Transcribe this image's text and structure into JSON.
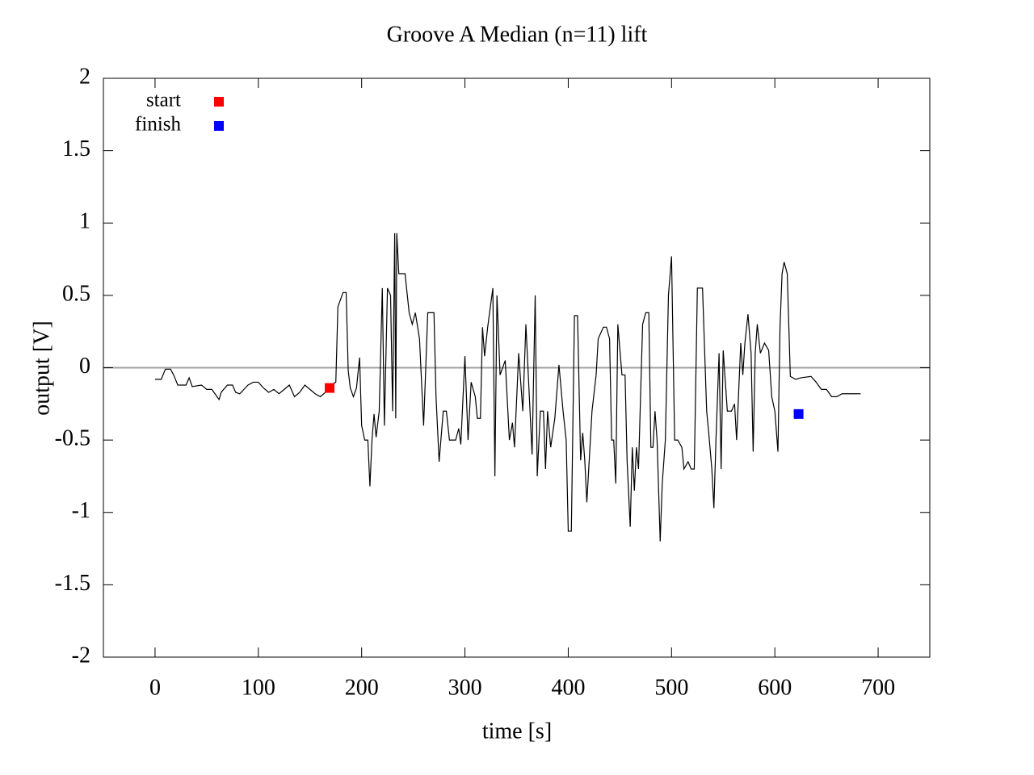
{
  "chart_data": {
    "type": "line",
    "title": "Groove A  Median (n=11) lift",
    "xlabel": "time [s]",
    "ylabel": "output [V]",
    "xlim": [
      -50,
      750
    ],
    "ylim": [
      -2,
      2
    ],
    "xticks": [
      0,
      100,
      200,
      300,
      400,
      500,
      600,
      700
    ],
    "yticks": [
      -2,
      -1.5,
      -1,
      -0.5,
      0,
      0.5,
      1,
      1.5,
      2
    ],
    "zero_line": true,
    "series": [
      {
        "color": "#000000",
        "x": [
          0,
          6,
          10,
          15,
          18,
          22,
          30,
          33,
          36,
          45,
          50,
          55,
          58,
          60,
          62,
          64,
          70,
          75,
          78,
          82,
          86,
          90,
          95,
          100,
          105,
          110,
          115,
          120,
          125,
          130,
          135,
          140,
          145,
          150,
          155,
          160,
          165,
          170,
          175,
          177,
          182,
          185,
          187,
          189,
          192,
          195,
          198,
          200,
          203,
          206,
          208,
          210,
          212,
          214,
          217,
          220,
          222,
          225,
          228,
          230,
          232,
          233,
          234,
          236,
          242,
          246,
          249,
          252,
          256,
          260,
          264,
          270,
          272,
          275,
          279,
          282,
          285,
          291,
          294,
          296,
          300,
          303,
          306,
          310,
          312,
          315,
          317,
          319,
          322,
          327,
          329,
          331,
          334,
          339,
          343,
          346,
          348,
          352,
          356,
          359,
          365,
          368,
          370,
          373,
          376,
          378,
          380,
          383,
          387,
          391,
          395,
          398,
          400,
          403,
          406,
          409,
          412,
          414,
          416,
          418,
          423,
          427,
          429,
          434,
          437,
          440,
          442,
          444,
          446,
          448,
          452,
          455,
          457,
          460,
          462,
          464,
          466,
          468,
          472,
          475,
          478,
          480,
          482,
          484,
          486,
          489,
          491,
          494,
          497,
          500,
          503,
          506,
          510,
          512,
          516,
          519,
          522,
          525,
          530,
          534,
          536,
          539,
          541,
          543,
          546,
          548,
          550,
          554,
          558,
          561,
          563,
          567,
          569,
          571,
          574,
          577,
          579,
          581,
          583,
          586,
          590,
          594,
          597,
          600,
          603,
          605,
          607,
          609,
          612,
          615,
          620,
          625,
          635,
          640,
          645,
          650,
          655,
          660,
          665,
          675,
          683
        ],
        "values": [
          -0.08,
          -0.08,
          -0.01,
          -0.01,
          -0.05,
          -0.12,
          -0.12,
          -0.07,
          -0.13,
          -0.12,
          -0.15,
          -0.15,
          -0.18,
          -0.2,
          -0.22,
          -0.17,
          -0.12,
          -0.12,
          -0.17,
          -0.18,
          -0.15,
          -0.12,
          -0.1,
          -0.1,
          -0.14,
          -0.17,
          -0.15,
          -0.18,
          -0.15,
          -0.12,
          -0.2,
          -0.17,
          -0.12,
          -0.15,
          -0.18,
          -0.2,
          -0.17,
          -0.12,
          -0.1,
          0.42,
          0.52,
          0.52,
          -0.02,
          -0.14,
          -0.2,
          -0.14,
          0.07,
          -0.4,
          -0.5,
          -0.5,
          -0.82,
          -0.5,
          -0.32,
          -0.48,
          -0.3,
          0.55,
          -0.4,
          0.55,
          0.5,
          -0.3,
          0.93,
          -0.35,
          0.93,
          0.65,
          0.65,
          0.38,
          0.3,
          0.38,
          0.2,
          -0.4,
          0.38,
          0.38,
          -0.2,
          -0.65,
          -0.3,
          -0.3,
          -0.5,
          -0.5,
          -0.42,
          -0.53,
          0.08,
          -0.5,
          -0.1,
          -0.2,
          -0.35,
          -0.35,
          0.28,
          0.08,
          0.28,
          0.55,
          -0.75,
          0.5,
          -0.05,
          0.05,
          -0.5,
          -0.38,
          -0.55,
          0.1,
          -0.3,
          0.3,
          -0.6,
          0.5,
          -0.75,
          -0.3,
          -0.3,
          -0.7,
          -0.3,
          -0.55,
          -0.35,
          0.02,
          -0.3,
          -0.5,
          -1.13,
          -1.13,
          0.36,
          0.36,
          -0.64,
          -0.45,
          -0.64,
          -0.93,
          -0.3,
          -0.05,
          0.2,
          0.28,
          0.28,
          0.2,
          -0.5,
          -0.5,
          -0.8,
          0.3,
          -0.05,
          -0.05,
          -0.65,
          -1.1,
          -0.55,
          -0.85,
          -0.55,
          -0.7,
          0.3,
          0.38,
          0.38,
          -0.55,
          -0.55,
          -0.3,
          -0.5,
          -1.2,
          -0.8,
          -0.5,
          0.5,
          0.77,
          -0.5,
          -0.5,
          -0.55,
          -0.7,
          -0.65,
          -0.7,
          -0.7,
          0.55,
          0.55,
          -0.3,
          -0.45,
          -0.7,
          -0.97,
          -0.5,
          0.1,
          -0.7,
          0.12,
          -0.3,
          -0.3,
          -0.25,
          -0.5,
          0.17,
          -0.05,
          0.17,
          0.37,
          0.1,
          -0.58,
          0.1,
          0.3,
          0.1,
          0.17,
          0.12,
          -0.2,
          -0.3,
          -0.58,
          0.28,
          0.65,
          0.73,
          0.65,
          -0.06,
          -0.08,
          -0.07,
          -0.06,
          -0.1,
          -0.15,
          -0.15,
          -0.2,
          -0.2,
          -0.18,
          -0.18,
          -0.18
        ]
      }
    ],
    "markers": [
      {
        "name": "start",
        "color": "#ff0000",
        "x": 169,
        "y": -0.14
      },
      {
        "name": "finish",
        "color": "#0000ff",
        "x": 623,
        "y": -0.32
      }
    ]
  }
}
